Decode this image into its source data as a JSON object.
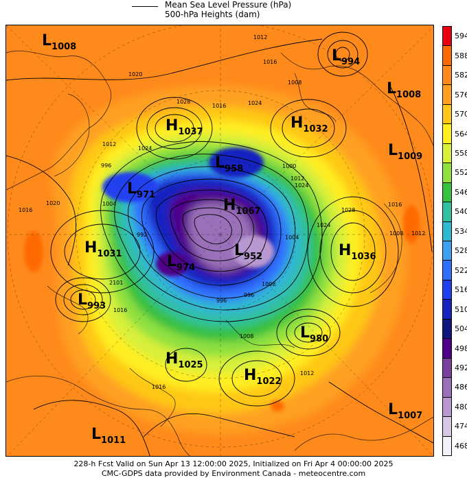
{
  "legend": {
    "line_label": "Mean Sea Level Pressure (hPa)",
    "shade_label": "500-hPa Heights (dam)"
  },
  "systems": [
    {
      "type": "L",
      "value": "1008",
      "anchor": "top-left"
    },
    {
      "type": "L",
      "value": "994",
      "anchor": "top-right"
    },
    {
      "type": "L",
      "value": "1008",
      "anchor": "upper-right"
    },
    {
      "type": "H",
      "value": "1037",
      "anchor": "upper-left"
    },
    {
      "type": "H",
      "value": "1032",
      "anchor": "upper-right-center"
    },
    {
      "type": "L",
      "value": "1009",
      "anchor": "right"
    },
    {
      "type": "L",
      "value": "958",
      "anchor": "center-top"
    },
    {
      "type": "L",
      "value": "971",
      "anchor": "center-left"
    },
    {
      "type": "H",
      "value": "1067",
      "anchor": "center"
    },
    {
      "type": "H",
      "value": "1031",
      "anchor": "left"
    },
    {
      "type": "H",
      "value": "1036",
      "anchor": "right-center"
    },
    {
      "type": "L",
      "value": "974",
      "anchor": "center-lower-left"
    },
    {
      "type": "L",
      "value": "952",
      "anchor": "center-lower"
    },
    {
      "type": "L",
      "value": "993",
      "anchor": "lower-left"
    },
    {
      "type": "L",
      "value": "980",
      "anchor": "lower-right-center"
    },
    {
      "type": "H",
      "value": "1025",
      "anchor": "lower-center-left"
    },
    {
      "type": "H",
      "value": "1022",
      "anchor": "lower-center"
    },
    {
      "type": "L",
      "value": "1007",
      "anchor": "bottom-right"
    },
    {
      "type": "L",
      "value": "1011",
      "anchor": "bottom-left"
    }
  ],
  "isobar_labels": [
    "1012",
    "1016",
    "1020",
    "1028",
    "1024",
    "1012",
    "996",
    "1004",
    "1024",
    "1016",
    "1008",
    "1000",
    "1024",
    "1016",
    "1020",
    "1012",
    "1008",
    "1016",
    "1028",
    "1024",
    "996",
    "1008",
    "1012",
    "1016",
    "1012",
    "1008",
    "992",
    "996",
    "1004",
    "2101",
    "1016"
  ],
  "color_scale": {
    "levels": [
      "594",
      "588",
      "582",
      "576",
      "570",
      "564",
      "558",
      "552",
      "546",
      "540",
      "534",
      "528",
      "522",
      "516",
      "510",
      "504",
      "498",
      "492",
      "486",
      "480",
      "474",
      "468"
    ],
    "colors": [
      "#e8000e",
      "#ff6a00",
      "#ff8a1c",
      "#ffa020",
      "#ffc818",
      "#ffee20",
      "#d8f03a",
      "#90e040",
      "#38c040",
      "#30c0a0",
      "#30b8d0",
      "#40a0f0",
      "#3070ff",
      "#2040f0",
      "#1820c0",
      "#101880",
      "#500088",
      "#7a40a0",
      "#9a70b8",
      "#b898d0",
      "#d8c8e8",
      "#f4f0f8"
    ]
  },
  "footer": {
    "line1": "228-h Fcst Valid on Sun Apr 13 12:00:00 2025, Initialized on Fri Apr  4 00:00:00 2025",
    "line2": "CMC-GDPS data provided by Environment Canada - meteocentre.com"
  }
}
